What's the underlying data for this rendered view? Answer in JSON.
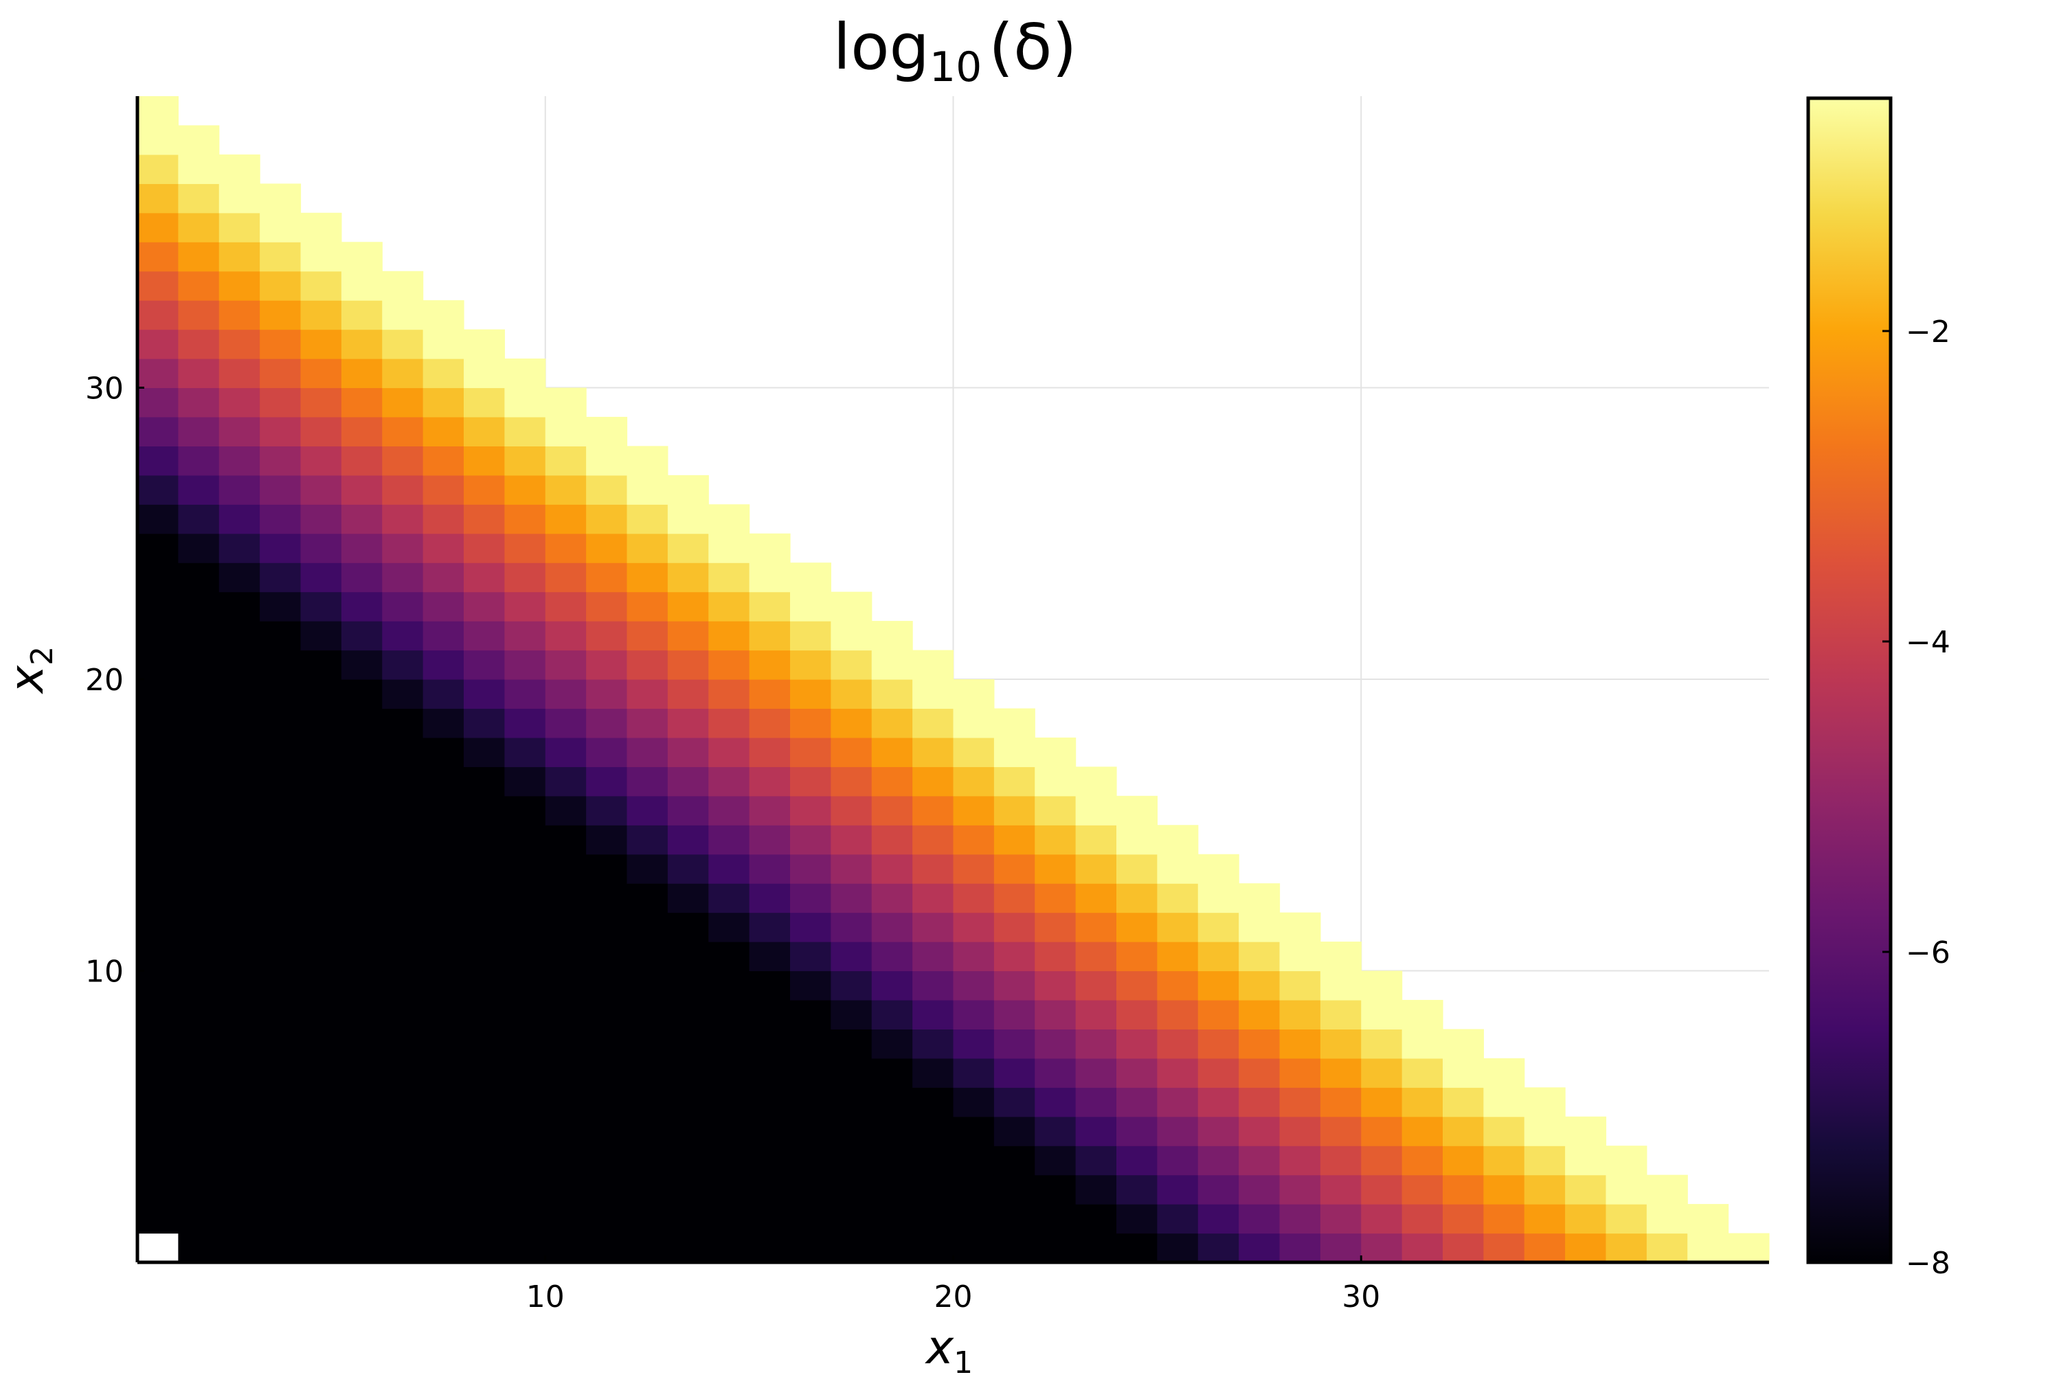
{
  "chart_data": {
    "type": "heatmap",
    "title": "log10(δ)",
    "title_parts": {
      "base": "log",
      "sub": "10",
      "arg": "(δ)"
    },
    "xlabel": {
      "base": "x",
      "sub": "1"
    },
    "ylabel": {
      "base": "x",
      "sub": "2"
    },
    "x_range": [
      0,
      40
    ],
    "y_range": [
      0,
      40
    ],
    "grid": true,
    "x_ticks": [
      {
        "value": 10,
        "label": "10"
      },
      {
        "value": 20,
        "label": "20"
      },
      {
        "value": 30,
        "label": "30"
      }
    ],
    "y_ticks": [
      {
        "value": 10,
        "label": "10"
      },
      {
        "value": 20,
        "label": "20"
      },
      {
        "value": 30,
        "label": "30"
      }
    ],
    "colormap": "inferno",
    "colorbar": {
      "min": -8,
      "max": -0.5,
      "ticks": [
        {
          "value": -2,
          "label": "−2"
        },
        {
          "value": -4,
          "label": "−4"
        },
        {
          "value": -6,
          "label": "−6"
        },
        {
          "value": -8,
          "label": "−8"
        }
      ]
    },
    "grid_size": 40,
    "domain": "cells (i, j) with i + j <= 40, i,j = 1..40",
    "missing_cells": [
      [
        1,
        1
      ]
    ],
    "value_model": "log10(delta) ≈ max(-8, -0.5 - 0.5 * (40 - i - j)) for the most part; decreasing away from the diagonal edge i + j = 40"
  }
}
